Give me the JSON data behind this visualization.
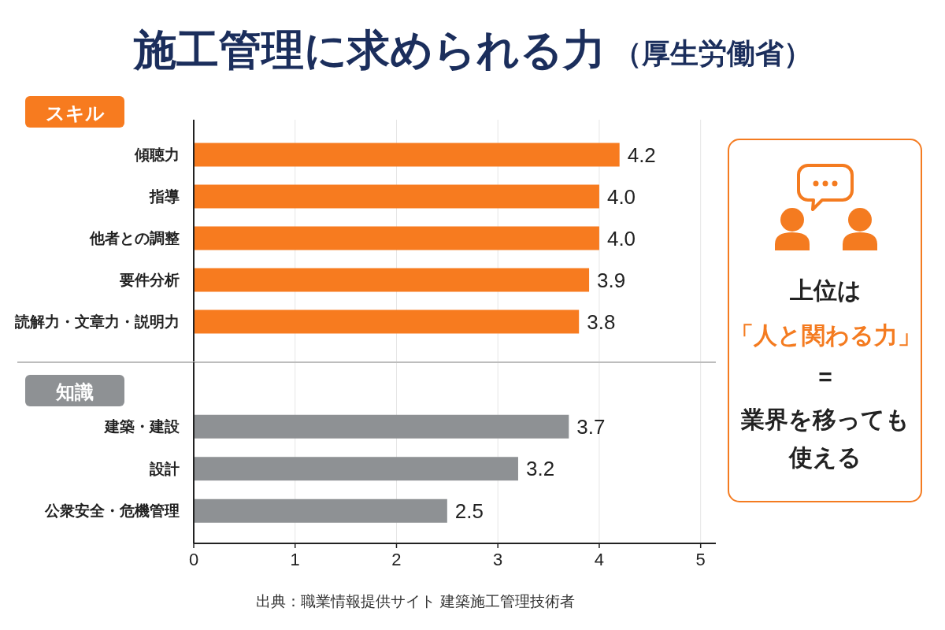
{
  "chart_data": [
    {
      "type": "bar",
      "orientation": "horizontal",
      "title": "施工管理に求められる力",
      "subtitle": "（厚生労働省）",
      "annotations": [
        "スキル"
      ],
      "categories": [
        "傾聴力",
        "指導",
        "他者との調整",
        "要件分析",
        "読解力・文章力・説明力"
      ],
      "series": [
        {
          "color": "#f77b1f",
          "values": [
            4.2,
            4.0,
            4.0,
            3.9,
            3.8
          ],
          "value_labels": [
            "4.2",
            "4.0",
            "4.0",
            "3.9",
            "3.8"
          ]
        }
      ],
      "xlim": [
        0,
        5.15
      ],
      "xticks": [
        0,
        1,
        2,
        3,
        4,
        5
      ],
      "tick_labels": "y",
      "grid": "x"
    },
    {
      "type": "bar",
      "orientation": "horizontal",
      "annotations": [
        "知識",
        "出典：職業情報提供サイト 建築施工管理技術者"
      ],
      "categories": [
        "建築・建設",
        "設計",
        "公衆安全・危機管理"
      ],
      "series": [
        {
          "color": "#8e9194",
          "values": [
            3.7,
            3.2,
            2.5
          ],
          "value_labels": [
            "3.7",
            "3.2",
            "2.5"
          ]
        }
      ],
      "xlim": [
        0,
        5.15
      ],
      "xticks": [
        0,
        1,
        2,
        3,
        4,
        5
      ],
      "grid": "x"
    },
    {
      "type": "other",
      "color": "#f47b20",
      "annotations": [
        "上位は",
        "「人と関わる力」",
        "=",
        "業界を移っても",
        "使える"
      ]
    }
  ]
}
